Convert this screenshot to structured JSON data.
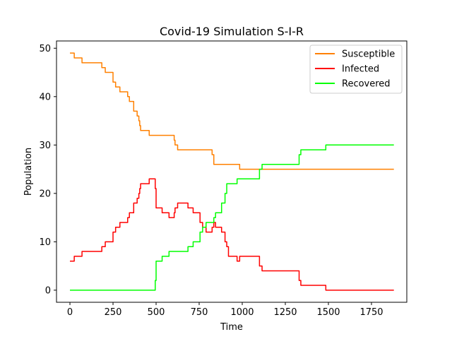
{
  "chart_data": {
    "type": "line",
    "title": "Covid-19 Simulation S-I-R",
    "xlabel": "Time",
    "ylabel": "Population",
    "xlim": [
      -78,
      1955
    ],
    "ylim": [
      -2.5,
      51.5
    ],
    "xticks": [
      0,
      250,
      500,
      750,
      1000,
      1250,
      1500,
      1750
    ],
    "yticks": [
      0,
      10,
      20,
      30,
      40,
      50
    ],
    "grid": false,
    "legend": "top-right",
    "series": [
      {
        "name": "Susceptible",
        "color": "#ff8000",
        "points": [
          [
            0,
            49
          ],
          [
            25,
            49
          ],
          [
            25,
            48
          ],
          [
            70,
            48
          ],
          [
            70,
            47
          ],
          [
            185,
            47
          ],
          [
            185,
            46
          ],
          [
            205,
            46
          ],
          [
            205,
            45
          ],
          [
            250,
            45
          ],
          [
            250,
            44
          ],
          [
            250,
            43
          ],
          [
            265,
            43
          ],
          [
            265,
            42
          ],
          [
            290,
            42
          ],
          [
            290,
            41
          ],
          [
            335,
            41
          ],
          [
            335,
            40
          ],
          [
            345,
            40
          ],
          [
            345,
            39
          ],
          [
            370,
            39
          ],
          [
            370,
            38
          ],
          [
            370,
            37
          ],
          [
            390,
            37
          ],
          [
            390,
            36
          ],
          [
            400,
            36
          ],
          [
            400,
            35
          ],
          [
            405,
            35
          ],
          [
            405,
            34
          ],
          [
            410,
            34
          ],
          [
            410,
            33
          ],
          [
            460,
            33
          ],
          [
            460,
            32
          ],
          [
            605,
            32
          ],
          [
            605,
            31
          ],
          [
            610,
            31
          ],
          [
            610,
            30
          ],
          [
            625,
            30
          ],
          [
            625,
            29
          ],
          [
            825,
            29
          ],
          [
            825,
            28
          ],
          [
            835,
            28
          ],
          [
            835,
            27
          ],
          [
            835,
            26
          ],
          [
            985,
            26
          ],
          [
            985,
            25
          ],
          [
            1880,
            25
          ]
        ]
      },
      {
        "name": "Infected",
        "color": "#ff0000",
        "points": [
          [
            0,
            6
          ],
          [
            25,
            6
          ],
          [
            25,
            7
          ],
          [
            70,
            7
          ],
          [
            70,
            8
          ],
          [
            185,
            8
          ],
          [
            185,
            9
          ],
          [
            205,
            9
          ],
          [
            205,
            10
          ],
          [
            250,
            10
          ],
          [
            250,
            11
          ],
          [
            250,
            12
          ],
          [
            265,
            12
          ],
          [
            265,
            13
          ],
          [
            290,
            13
          ],
          [
            290,
            14
          ],
          [
            335,
            14
          ],
          [
            335,
            15
          ],
          [
            345,
            15
          ],
          [
            345,
            16
          ],
          [
            370,
            16
          ],
          [
            370,
            17
          ],
          [
            370,
            18
          ],
          [
            390,
            18
          ],
          [
            390,
            19
          ],
          [
            400,
            19
          ],
          [
            400,
            20
          ],
          [
            405,
            20
          ],
          [
            405,
            21
          ],
          [
            410,
            21
          ],
          [
            410,
            22
          ],
          [
            460,
            22
          ],
          [
            460,
            23
          ],
          [
            495,
            23
          ],
          [
            495,
            21
          ],
          [
            500,
            21
          ],
          [
            500,
            17
          ],
          [
            535,
            17
          ],
          [
            535,
            16
          ],
          [
            575,
            16
          ],
          [
            575,
            15
          ],
          [
            605,
            15
          ],
          [
            605,
            16
          ],
          [
            610,
            16
          ],
          [
            610,
            17
          ],
          [
            625,
            17
          ],
          [
            625,
            18
          ],
          [
            685,
            18
          ],
          [
            685,
            17
          ],
          [
            715,
            17
          ],
          [
            715,
            16
          ],
          [
            755,
            16
          ],
          [
            755,
            14
          ],
          [
            770,
            14
          ],
          [
            770,
            13
          ],
          [
            790,
            13
          ],
          [
            790,
            12
          ],
          [
            825,
            12
          ],
          [
            825,
            13
          ],
          [
            835,
            13
          ],
          [
            835,
            14
          ],
          [
            845,
            14
          ],
          [
            845,
            13
          ],
          [
            880,
            13
          ],
          [
            880,
            12
          ],
          [
            900,
            12
          ],
          [
            900,
            10
          ],
          [
            910,
            10
          ],
          [
            910,
            9
          ],
          [
            920,
            9
          ],
          [
            920,
            7
          ],
          [
            970,
            7
          ],
          [
            970,
            6
          ],
          [
            985,
            6
          ],
          [
            985,
            7
          ],
          [
            1100,
            7
          ],
          [
            1100,
            5
          ],
          [
            1115,
            5
          ],
          [
            1115,
            4
          ],
          [
            1330,
            4
          ],
          [
            1330,
            2
          ],
          [
            1340,
            2
          ],
          [
            1340,
            1
          ],
          [
            1485,
            1
          ],
          [
            1485,
            0
          ],
          [
            1880,
            0
          ]
        ]
      },
      {
        "name": "Recovered",
        "color": "#00ff00",
        "points": [
          [
            0,
            0
          ],
          [
            495,
            0
          ],
          [
            495,
            2
          ],
          [
            500,
            2
          ],
          [
            500,
            6
          ],
          [
            535,
            6
          ],
          [
            535,
            7
          ],
          [
            575,
            7
          ],
          [
            575,
            8
          ],
          [
            685,
            8
          ],
          [
            685,
            9
          ],
          [
            715,
            9
          ],
          [
            715,
            10
          ],
          [
            755,
            10
          ],
          [
            755,
            12
          ],
          [
            770,
            12
          ],
          [
            770,
            13
          ],
          [
            790,
            13
          ],
          [
            790,
            14
          ],
          [
            835,
            14
          ],
          [
            835,
            15
          ],
          [
            845,
            15
          ],
          [
            845,
            16
          ],
          [
            880,
            16
          ],
          [
            880,
            17
          ],
          [
            880,
            18
          ],
          [
            900,
            18
          ],
          [
            900,
            20
          ],
          [
            910,
            20
          ],
          [
            910,
            21
          ],
          [
            910,
            22
          ],
          [
            970,
            22
          ],
          [
            970,
            23
          ],
          [
            1100,
            23
          ],
          [
            1100,
            25
          ],
          [
            1115,
            25
          ],
          [
            1115,
            26
          ],
          [
            1330,
            26
          ],
          [
            1330,
            28
          ],
          [
            1340,
            28
          ],
          [
            1340,
            29
          ],
          [
            1485,
            29
          ],
          [
            1485,
            30
          ],
          [
            1880,
            30
          ]
        ]
      }
    ]
  }
}
